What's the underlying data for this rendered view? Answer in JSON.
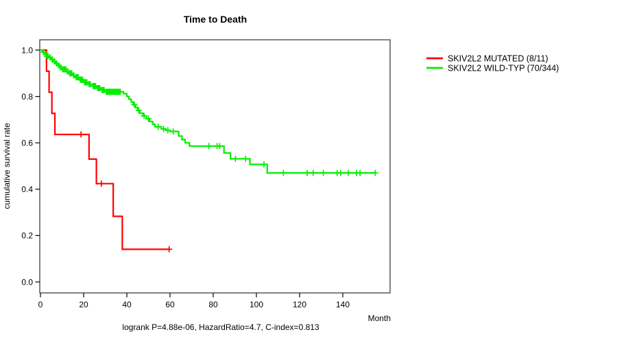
{
  "chart_data": {
    "type": "line",
    "subtype": "kaplan-meier-step",
    "title": "Time to Death",
    "xlabel": "Month",
    "ylabel": "cumulative survival rate",
    "annotation": "logrank P=4.88e-06, HazardRatio=4.7, C-index=0.813",
    "xlim": [
      0,
      162
    ],
    "ylim": [
      0.0,
      1.0
    ],
    "xtick_values": [
      0,
      20,
      40,
      60,
      80,
      100,
      120,
      140
    ],
    "xtick_labels": [
      "0",
      "20",
      "40",
      "60",
      "80",
      "100",
      "120",
      "140"
    ],
    "ytick_values": [
      0.0,
      0.2,
      0.4,
      0.6,
      0.8,
      1.0
    ],
    "ytick_labels": [
      "0.0",
      "0.2",
      "0.4",
      "0.6",
      "0.8",
      "1.0"
    ],
    "grid": false,
    "legend_position": "right-outside",
    "series": [
      {
        "id": "mutated",
        "name": "SKIV2L2 MUTATED (8/11)",
        "color": "#ff0000",
        "step_points": [
          [
            0,
            1.0
          ],
          [
            2.8,
            0.909
          ],
          [
            4.0,
            0.818
          ],
          [
            5.3,
            0.727
          ],
          [
            6.7,
            0.636
          ],
          [
            22.5,
            0.53
          ],
          [
            25.9,
            0.424
          ],
          [
            33.7,
            0.283
          ],
          [
            37.9,
            0.141
          ]
        ],
        "censor_months": [
          18.8,
          28.2,
          59.6
        ],
        "end_month": 59.6
      },
      {
        "id": "wild-typ",
        "name": "SKIV2L2 WILD-TYP (70/344)",
        "color": "#00ee00",
        "step_points": [
          [
            0,
            1.0
          ],
          [
            1,
            0.991
          ],
          [
            2,
            0.983
          ],
          [
            3,
            0.974
          ],
          [
            4,
            0.968
          ],
          [
            5,
            0.959
          ],
          [
            6,
            0.951
          ],
          [
            7,
            0.942
          ],
          [
            8,
            0.934
          ],
          [
            9,
            0.925
          ],
          [
            10,
            0.917
          ],
          [
            12,
            0.908
          ],
          [
            13,
            0.9
          ],
          [
            15,
            0.89
          ],
          [
            16,
            0.883
          ],
          [
            18,
            0.872
          ],
          [
            20,
            0.861
          ],
          [
            22,
            0.853
          ],
          [
            24,
            0.845
          ],
          [
            26,
            0.836
          ],
          [
            28,
            0.828
          ],
          [
            30,
            0.82
          ],
          [
            38.5,
            0.812
          ],
          [
            40,
            0.8
          ],
          [
            41,
            0.788
          ],
          [
            42,
            0.776
          ],
          [
            43,
            0.764
          ],
          [
            44,
            0.752
          ],
          [
            45,
            0.74
          ],
          [
            46,
            0.728
          ],
          [
            47.5,
            0.716
          ],
          [
            49,
            0.704
          ],
          [
            50.5,
            0.692
          ],
          [
            52,
            0.68
          ],
          [
            53,
            0.669
          ],
          [
            56,
            0.66
          ],
          [
            58,
            0.654
          ],
          [
            60,
            0.649
          ],
          [
            64,
            0.629
          ],
          [
            65.5,
            0.614
          ],
          [
            67,
            0.6
          ],
          [
            69,
            0.586
          ],
          [
            85,
            0.556
          ],
          [
            88,
            0.531
          ],
          [
            97,
            0.507
          ],
          [
            105,
            0.47
          ]
        ],
        "censor_months": [
          1.5,
          2.5,
          3,
          3.5,
          4.5,
          5.5,
          6.5,
          7.5,
          8.5,
          9.5,
          10.3,
          10.8,
          11.3,
          11.8,
          12.5,
          13.5,
          14,
          14.5,
          15.5,
          16.5,
          17,
          17.5,
          18.5,
          19,
          19.5,
          20.5,
          21,
          21.5,
          22.5,
          23,
          24.5,
          25,
          25.5,
          26.5,
          27,
          27.5,
          28.5,
          29,
          29.5,
          30.5,
          31,
          31.5,
          32,
          32.5,
          33,
          33.5,
          34,
          34.5,
          35,
          35.5,
          36,
          36.5,
          37,
          43.5,
          45.5,
          48,
          50,
          54.5,
          57,
          59,
          61.5,
          78,
          81.8,
          83,
          90.3,
          95,
          103.5,
          112.5,
          123.5,
          126.3,
          131,
          137.4,
          139,
          142.5,
          146.3,
          148,
          155
        ],
        "end_month": 155
      }
    ]
  }
}
